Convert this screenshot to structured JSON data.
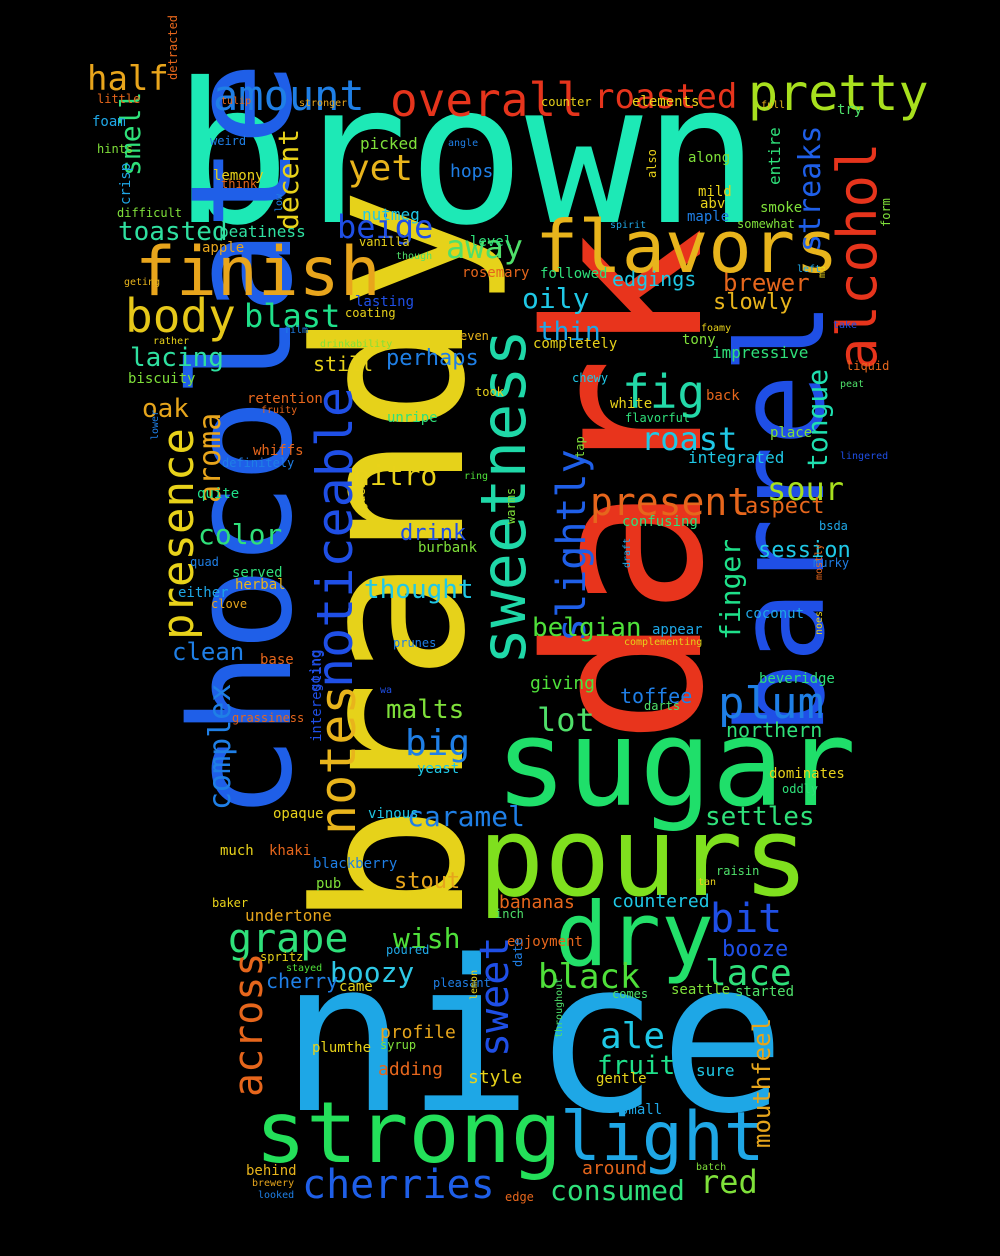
{
  "words": [
    {
      "text": "brown",
      "color": "#1de9b6"
    },
    {
      "text": "nice",
      "color": "#1ea7e6"
    },
    {
      "text": "dark",
      "color": "#e8341c"
    },
    {
      "text": "brandy",
      "color": "#e6d21a"
    },
    {
      "text": "sugar",
      "color": "#1fdf6a"
    },
    {
      "text": "pours",
      "color": "#7fe01e"
    },
    {
      "text": "chocolate",
      "color": "#1f5fe8"
    },
    {
      "text": "barrel",
      "color": "#1f4fe6"
    },
    {
      "text": "strong",
      "color": "#24e05a"
    },
    {
      "text": "flavors",
      "color": "#e8b41c"
    },
    {
      "text": "finish",
      "color": "#e8a51c"
    },
    {
      "text": "sweetness",
      "color": "#1fd8a8"
    },
    {
      "text": "dry",
      "color": "#23e06a"
    },
    {
      "text": "light",
      "color": "#1fa7e6"
    },
    {
      "text": "alcohol",
      "color": "#e6341c"
    },
    {
      "text": "notes",
      "color": "#e8b41c"
    },
    {
      "text": "noticeable",
      "color": "#1f4fe6"
    },
    {
      "text": "pretty",
      "color": "#a8e01e"
    },
    {
      "text": "overall",
      "color": "#e6341c"
    },
    {
      "text": "amount",
      "color": "#1f7fe6"
    },
    {
      "text": "roasted",
      "color": "#e6341c"
    },
    {
      "text": "half",
      "color": "#e8a51c"
    },
    {
      "text": "body",
      "color": "#e6c81a"
    },
    {
      "text": "presence",
      "color": "#e8d21a"
    },
    {
      "text": "slightly",
      "color": "#1f5fe8"
    },
    {
      "text": "plum",
      "color": "#1f7fe6"
    },
    {
      "text": "fig",
      "color": "#23d8a8"
    },
    {
      "text": "cherries",
      "color": "#1f5fe8"
    },
    {
      "text": "grape",
      "color": "#2fe07a"
    },
    {
      "text": "sweet",
      "color": "#1f4fe6"
    },
    {
      "text": "across",
      "color": "#e6661c"
    },
    {
      "text": "complex",
      "color": "#1f7fe6"
    },
    {
      "text": "streaks",
      "color": "#1f5fe8"
    },
    {
      "text": "present",
      "color": "#e6661c"
    },
    {
      "text": "roast",
      "color": "#1fc8e6"
    },
    {
      "text": "sour",
      "color": "#a8e01e"
    },
    {
      "text": "away",
      "color": "#4fe06a"
    },
    {
      "text": "beige",
      "color": "#1f4fe6"
    },
    {
      "text": "blast",
      "color": "#1fe08a"
    },
    {
      "text": "aroma",
      "color": "#e8a51c"
    },
    {
      "text": "smell",
      "color": "#2fe07a"
    },
    {
      "text": "decent",
      "color": "#e8d21a"
    },
    {
      "text": "yet",
      "color": "#e8b41c"
    },
    {
      "text": "oily",
      "color": "#1fc8e6"
    },
    {
      "text": "thin",
      "color": "#1fa7e6"
    },
    {
      "text": "finger",
      "color": "#1fe08a"
    },
    {
      "text": "tongue",
      "color": "#1fe0b0"
    },
    {
      "text": "mouthfeel",
      "color": "#e6a51c"
    },
    {
      "text": "bit",
      "color": "#1f4fe6"
    },
    {
      "text": "lace",
      "color": "#2fe07a"
    },
    {
      "text": "black",
      "color": "#4fe03a"
    },
    {
      "text": "boozy",
      "color": "#2fc8e6"
    },
    {
      "text": "caramel",
      "color": "#1f7fe6"
    },
    {
      "text": "big",
      "color": "#1f7fe6"
    },
    {
      "text": "lot",
      "color": "#4fe06a"
    },
    {
      "text": "malts",
      "color": "#7fe03a"
    },
    {
      "text": "ale",
      "color": "#1fc8e6"
    },
    {
      "text": "red",
      "color": "#7fe03a"
    },
    {
      "text": "consumed",
      "color": "#2fe07a"
    },
    {
      "text": "settles",
      "color": "#2fe07a"
    },
    {
      "text": "wish",
      "color": "#4fe03a"
    },
    {
      "text": "fruit",
      "color": "#1fe08a"
    },
    {
      "text": "color",
      "color": "#2fe07a"
    },
    {
      "text": "lacing",
      "color": "#2fe0a0"
    },
    {
      "text": "toasted",
      "color": "#2fe0a0"
    },
    {
      "text": "belgian",
      "color": "#4fe03a"
    },
    {
      "text": "nitro",
      "color": "#e8d21a"
    },
    {
      "text": "thought",
      "color": "#1fc8e6"
    },
    {
      "text": "stout",
      "color": "#e6a51c"
    },
    {
      "text": "clean",
      "color": "#1f7fe6"
    },
    {
      "text": "oak",
      "color": "#e6a51c"
    },
    {
      "text": "drink",
      "color": "#1f4fe6"
    },
    {
      "text": "session",
      "color": "#1fc8e6"
    },
    {
      "text": "aspect",
      "color": "#e6661c"
    },
    {
      "text": "booze",
      "color": "#1f4fe6"
    },
    {
      "text": "toffee",
      "color": "#1f7fe6"
    },
    {
      "text": "brewer",
      "color": "#e6661c"
    },
    {
      "text": "slowly",
      "color": "#e8b41c"
    },
    {
      "text": "perhaps",
      "color": "#1f7fe6"
    },
    {
      "text": "edgings",
      "color": "#1fc8e6"
    },
    {
      "text": "giving",
      "color": "#4fe03a"
    },
    {
      "text": "northern",
      "color": "#2fe07a"
    },
    {
      "text": "still",
      "color": "#e8d21a"
    },
    {
      "text": "impressive",
      "color": "#2fe07a"
    },
    {
      "text": "integrated",
      "color": "#1fc8e6"
    },
    {
      "text": "countered",
      "color": "#1fc8e6"
    },
    {
      "text": "bananas",
      "color": "#e6661c"
    },
    {
      "text": "cherry",
      "color": "#1f7fe6"
    },
    {
      "text": "undertone",
      "color": "#e6a51c"
    },
    {
      "text": "profile",
      "color": "#e6a51c"
    },
    {
      "text": "adding",
      "color": "#e6661c"
    },
    {
      "text": "style",
      "color": "#e6d21a"
    },
    {
      "text": "sure",
      "color": "#1fc8e6"
    },
    {
      "text": "around",
      "color": "#e6661c"
    },
    {
      "text": "hops",
      "color": "#1f7fe6"
    },
    {
      "text": "nutmeg",
      "color": "#1fc8e6"
    },
    {
      "text": "picked",
      "color": "#7fe03a"
    },
    {
      "text": "entire",
      "color": "#2fe07a"
    },
    {
      "text": "smoke",
      "color": "#7fe03a"
    },
    {
      "text": "mild",
      "color": "#e8d21a"
    },
    {
      "text": "abv",
      "color": "#e8d21a"
    },
    {
      "text": "maple",
      "color": "#1f7fe6"
    },
    {
      "text": "along",
      "color": "#7fe03a"
    },
    {
      "text": "elements",
      "color": "#e8d21a"
    },
    {
      "text": "try",
      "color": "#4fe06a"
    },
    {
      "text": "foam",
      "color": "#1fa7e6"
    },
    {
      "text": "hints",
      "color": "#7fe03a"
    },
    {
      "text": "crisp",
      "color": "#1fa7e6"
    },
    {
      "text": "difficult",
      "color": "#7fe03a"
    },
    {
      "text": "apple",
      "color": "#e6a51c"
    },
    {
      "text": "peatiness",
      "color": "#2fe0a0"
    },
    {
      "text": "level",
      "color": "#2fe07a"
    },
    {
      "text": "rosemary",
      "color": "#e6661c"
    },
    {
      "text": "followed",
      "color": "#2fe07a"
    },
    {
      "text": "lasting",
      "color": "#1f4fe6"
    },
    {
      "text": "coating",
      "color": "#e8d21a"
    },
    {
      "text": "even",
      "color": "#e8b41c"
    },
    {
      "text": "completely",
      "color": "#e8d21a"
    },
    {
      "text": "tony",
      "color": "#7fe03a"
    },
    {
      "text": "biscuity",
      "color": "#7fe03a"
    },
    {
      "text": "retention",
      "color": "#e6661c"
    },
    {
      "text": "unripe",
      "color": "#2fe07a"
    },
    {
      "text": "white",
      "color": "#e8d21a"
    },
    {
      "text": "back",
      "color": "#e6661c"
    },
    {
      "text": "place",
      "color": "#7fe03a"
    },
    {
      "text": "whiffs",
      "color": "#e6661c"
    },
    {
      "text": "definitely",
      "color": "#1f7fe6"
    },
    {
      "text": "quite",
      "color": "#1fe08a"
    },
    {
      "text": "served",
      "color": "#2fe07a"
    },
    {
      "text": "herbal",
      "color": "#e8b41c"
    },
    {
      "text": "either",
      "color": "#1fa7e6"
    },
    {
      "text": "clove",
      "color": "#e8a51c"
    },
    {
      "text": "quad",
      "color": "#1f7fe6"
    },
    {
      "text": "confusing",
      "color": "#2fe07a"
    },
    {
      "text": "warms",
      "color": "#7fe03a"
    },
    {
      "text": "burbank",
      "color": "#7fe03a"
    },
    {
      "text": "appear",
      "color": "#1fa7e6"
    },
    {
      "text": "complementing",
      "color": "#e6d21a"
    },
    {
      "text": "coconut",
      "color": "#1fa7e6"
    },
    {
      "text": "beveridge",
      "color": "#2fe07a"
    },
    {
      "text": "base",
      "color": "#e6661c"
    },
    {
      "text": "grassiness",
      "color": "#e6661c"
    },
    {
      "text": "going",
      "color": "#1f4fe6"
    },
    {
      "text": "interesting",
      "color": "#1f4fe6"
    },
    {
      "text": "opaque",
      "color": "#e8d21a"
    },
    {
      "text": "vinous",
      "color": "#1fc8e6"
    },
    {
      "text": "yeast",
      "color": "#1fc8e6"
    },
    {
      "text": "dominates",
      "color": "#e8d21a"
    },
    {
      "text": "oddly",
      "color": "#2fe07a"
    },
    {
      "text": "much",
      "color": "#e8d21a"
    },
    {
      "text": "khaki",
      "color": "#e6661c"
    },
    {
      "text": "blackberry",
      "color": "#1f7fe6"
    },
    {
      "text": "pub",
      "color": "#7fe03a"
    },
    {
      "text": "raisin",
      "color": "#4fe06a"
    },
    {
      "text": "tan",
      "color": "#e8d21a"
    },
    {
      "text": "baker",
      "color": "#e8d21a"
    },
    {
      "text": "inch",
      "color": "#4fe06a"
    },
    {
      "text": "enjoyment",
      "color": "#e6661c"
    },
    {
      "text": "poured",
      "color": "#1fa7e6"
    },
    {
      "text": "spritz",
      "color": "#e6d21a"
    },
    {
      "text": "stayed",
      "color": "#4fe03a"
    },
    {
      "text": "came",
      "color": "#e6d21a"
    },
    {
      "text": "pleasant",
      "color": "#1f7fe6"
    },
    {
      "text": "comes",
      "color": "#4fe06a"
    },
    {
      "text": "seattle",
      "color": "#7fe03a"
    },
    {
      "text": "started",
      "color": "#4fe06a"
    },
    {
      "text": "plumthe",
      "color": "#e6d21a"
    },
    {
      "text": "syrup",
      "color": "#7fe03a"
    },
    {
      "text": "gentle",
      "color": "#e6d21a"
    },
    {
      "text": "small",
      "color": "#1fa7e6"
    },
    {
      "text": "behind",
      "color": "#e8b41c"
    },
    {
      "text": "brewery",
      "color": "#e6a51c"
    },
    {
      "text": "looked",
      "color": "#1f7fe6"
    },
    {
      "text": "edge",
      "color": "#e6661c"
    },
    {
      "text": "batch",
      "color": "#7fe03a"
    },
    {
      "text": "detracted",
      "color": "#e6661c"
    },
    {
      "text": "little",
      "color": "#e6661c"
    },
    {
      "text": "tulip",
      "color": "#e6661c"
    },
    {
      "text": "stronger",
      "color": "#e6a51c"
    },
    {
      "text": "counter",
      "color": "#e8d21a"
    },
    {
      "text": "full",
      "color": "#e8b41c"
    },
    {
      "text": "weird",
      "color": "#1f7fe6"
    },
    {
      "text": "angle",
      "color": "#1f7fe6"
    },
    {
      "text": "lemony",
      "color": "#e8d21a"
    },
    {
      "text": "think",
      "color": "#e6661c"
    },
    {
      "text": "also",
      "color": "#e8d21a"
    },
    {
      "text": "spirit",
      "color": "#1fa7e6"
    },
    {
      "text": "somewhat",
      "color": "#7fe03a"
    },
    {
      "text": "vanilla",
      "color": "#e8d21a"
    },
    {
      "text": "low",
      "color": "#1f7fe6"
    },
    {
      "text": "though",
      "color": "#4fe06a"
    },
    {
      "text": "geting",
      "color": "#e8b41c"
    },
    {
      "text": "left",
      "color": "#1fa7e6"
    },
    {
      "text": "md",
      "color": "#e8d21a"
    },
    {
      "text": "form",
      "color": "#7fe03a"
    },
    {
      "text": "rather",
      "color": "#e8d21a"
    },
    {
      "text": "film",
      "color": "#1f7fe6"
    },
    {
      "text": "drinkability",
      "color": "#7fe03a"
    },
    {
      "text": "foamy",
      "color": "#e8d21a"
    },
    {
      "text": "take",
      "color": "#1f4fe6"
    },
    {
      "text": "liquid",
      "color": "#e6661c"
    },
    {
      "text": "peat",
      "color": "#4fe06a"
    },
    {
      "text": "fruity",
      "color": "#e6661c"
    },
    {
      "text": "chewy",
      "color": "#1fc8e6"
    },
    {
      "text": "took",
      "color": "#e8d21a"
    },
    {
      "text": "flavorful",
      "color": "#2fe07a"
    },
    {
      "text": "lingered",
      "color": "#1f4fe6"
    },
    {
      "text": "lower",
      "color": "#1f7fe6"
    },
    {
      "text": "ring",
      "color": "#4fe03a"
    },
    {
      "text": "tap",
      "color": "#7fe03a"
    },
    {
      "text": "guess",
      "color": "#e8d21a"
    },
    {
      "text": "bsda",
      "color": "#1fa7e6"
    },
    {
      "text": "murky",
      "color": "#1f7fe6"
    },
    {
      "text": "draft",
      "color": "#1fa7e6"
    },
    {
      "text": "mostly",
      "color": "#e6661c"
    },
    {
      "text": "noes",
      "color": "#e8d21a"
    },
    {
      "text": "prunes",
      "color": "#1f7fe6"
    },
    {
      "text": "wa",
      "color": "#1f4fe6"
    },
    {
      "text": "darts",
      "color": "#4fe06a"
    },
    {
      "text": "ca",
      "color": "#e8d21a"
    },
    {
      "text": "lemon",
      "color": "#e8d21a"
    },
    {
      "text": "date",
      "color": "#1f7fe6"
    },
    {
      "text": "throughout",
      "color": "#4fe06a"
    },
    {
      "text": "scotch",
      "color": "#1f4fe6"
    }
  ]
}
